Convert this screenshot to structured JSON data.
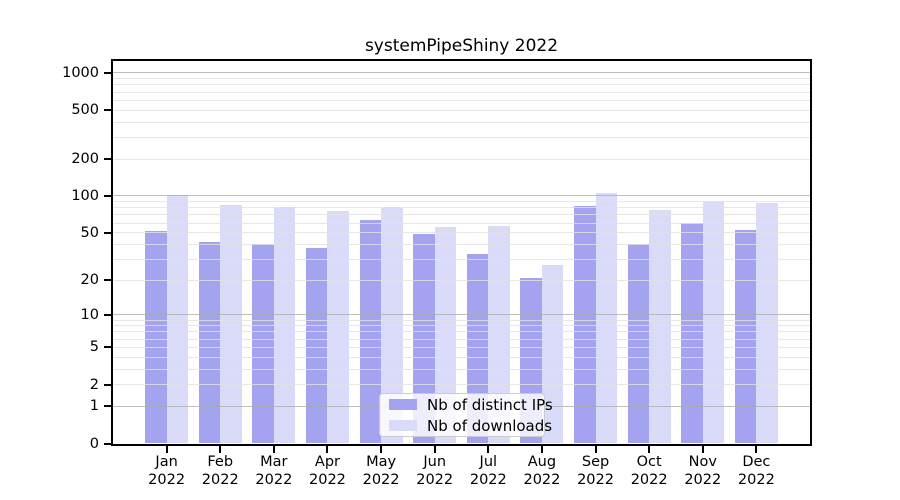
{
  "title": "systemPipeShiny 2022",
  "legend": {
    "items": [
      {
        "label": "Nb of distinct IPs",
        "series": "ips"
      },
      {
        "label": "Nb of downloads",
        "series": "downloads"
      }
    ]
  },
  "colors": {
    "ips": "#a3a3ef",
    "downloads": "#dadaf9",
    "grid_major": "#c0c0c0",
    "grid_minor": "#e9e9e9",
    "axis": "#000000"
  },
  "chart_data": {
    "type": "bar",
    "title": "systemPipeShiny 2022",
    "categories": [
      "Jan 2022",
      "Feb 2022",
      "Mar 2022",
      "Apr 2022",
      "May 2022",
      "Jun 2022",
      "Jul 2022",
      "Aug 2022",
      "Sep 2022",
      "Oct 2022",
      "Nov 2022",
      "Dec 2022"
    ],
    "series": [
      {
        "name": "Nb of distinct IPs",
        "color": "#a3a3ef",
        "values": [
          52,
          42,
          40,
          37,
          63,
          49,
          33,
          21,
          83,
          40,
          60,
          53
        ]
      },
      {
        "name": "Nb of downloads",
        "color": "#dadaf9",
        "values": [
          102,
          85,
          81,
          75,
          81,
          56,
          57,
          27,
          105,
          77,
          91,
          88
        ]
      }
    ],
    "xlabel": "",
    "ylabel": "",
    "yscale": "log10(1+value)",
    "yticks": [
      0,
      1,
      2,
      5,
      10,
      20,
      50,
      100,
      200,
      500,
      1000
    ],
    "ylim": [
      0,
      1250
    ],
    "grid": "horizontal major+minor, drawn above bars",
    "legend_position": "lower center"
  }
}
